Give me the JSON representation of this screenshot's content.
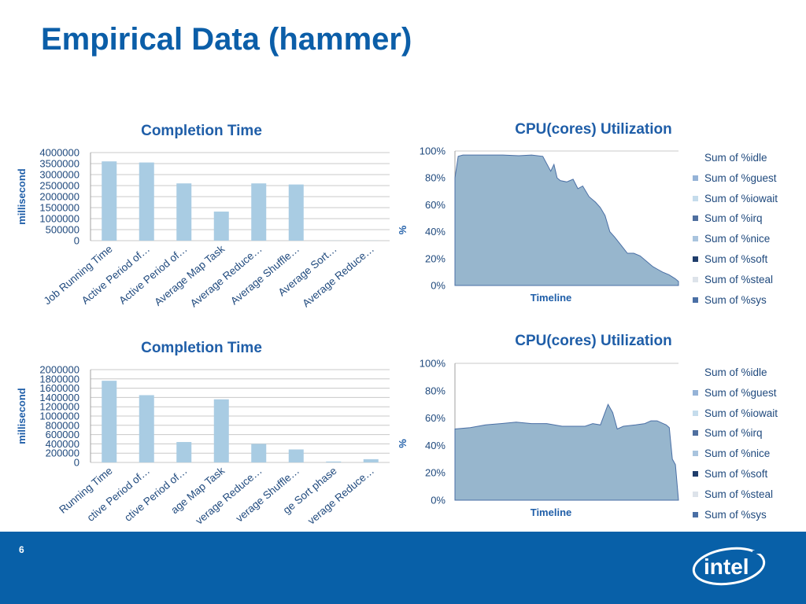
{
  "slide": {
    "title": "Empirical Data (hammer)",
    "page_number": "6"
  },
  "logo": {
    "text": "intel"
  },
  "chart_data": [
    {
      "type": "bar",
      "title": "Completion Time",
      "ylabel": "millisecond",
      "xlabel": "",
      "ylim": [
        0,
        4000000
      ],
      "yticks": [
        "4000000",
        "3500000",
        "3000000",
        "2500000",
        "2000000",
        "1500000",
        "1000000",
        "500000",
        "0"
      ],
      "categories": [
        "Job Running Time",
        "Active Period of…",
        "Active Period of…",
        "Average Map Task",
        "Average Reduce…",
        "Average Shuffle…",
        "Average Sort…",
        "Average Reduce…"
      ],
      "values": [
        3600000,
        3550000,
        2600000,
        1320000,
        2600000,
        2550000,
        5000,
        5000
      ],
      "bar_color": "#a9cce3",
      "grid": true
    },
    {
      "type": "bar",
      "title": "Completion Time",
      "ylabel": "millisecond",
      "xlabel": "",
      "ylim": [
        0,
        2000000
      ],
      "yticks": [
        "2000000",
        "1800000",
        "1600000",
        "1400000",
        "1200000",
        "1000000",
        "800000",
        "600000",
        "400000",
        "200000",
        "0"
      ],
      "categories": [
        "Running Time",
        "ctive Period of…",
        "ctive Period of…",
        "age Map Task",
        "verage Reduce…",
        "verage Shuffle…",
        "ge Sort phase",
        "verage Reduce…"
      ],
      "values": [
        1760000,
        1450000,
        440000,
        1360000,
        400000,
        280000,
        20000,
        70000
      ],
      "bar_color": "#a9cce3",
      "grid": true
    },
    {
      "type": "area",
      "title": "CPU(cores) Utilization",
      "xlabel": "Timeline",
      "ylabel": "%",
      "ylim": [
        0,
        100
      ],
      "yticks": [
        "100%",
        "80%",
        "60%",
        "40%",
        "20%",
        "0%"
      ],
      "legend_position": "right",
      "legend": [
        "Sum of %idle",
        "Sum of %guest",
        "Sum of %iowait",
        "Sum of %irq",
        "Sum of %nice",
        "Sum of %soft",
        "Sum of %steal",
        "Sum of %sys"
      ],
      "legend_colors": [
        "#ffffff",
        "#95b3d7",
        "#c5dcec",
        "#4f6f9f",
        "#a9c4de",
        "#1f3d6b",
        "#dde3ea",
        "#4a6fa5"
      ],
      "fill_color": "#97b6cd",
      "sys_color": "#4a6fa5",
      "series_busy_pct": [
        [
          0,
          80
        ],
        [
          2,
          96
        ],
        [
          5,
          97
        ],
        [
          10,
          97
        ],
        [
          20,
          97
        ],
        [
          30,
          97
        ],
        [
          40,
          96.5
        ],
        [
          48,
          97
        ],
        [
          55,
          96
        ],
        [
          60,
          85
        ],
        [
          62,
          90
        ],
        [
          64,
          80
        ],
        [
          66,
          78
        ],
        [
          70,
          77
        ],
        [
          74,
          79
        ],
        [
          77,
          72
        ],
        [
          80,
          74
        ],
        [
          84,
          66
        ],
        [
          88,
          62
        ],
        [
          91,
          58
        ],
        [
          94,
          52
        ],
        [
          97,
          40
        ],
        [
          100,
          36
        ],
        [
          104,
          30
        ],
        [
          108,
          24
        ],
        [
          112,
          24
        ],
        [
          116,
          22
        ],
        [
          120,
          18
        ],
        [
          124,
          14
        ],
        [
          127,
          12
        ],
        [
          130,
          10
        ],
        [
          134,
          8
        ],
        [
          138,
          5
        ],
        [
          140,
          3
        ]
      ]
    },
    {
      "type": "area",
      "title": "CPU(cores) Utilization",
      "xlabel": "Timeline",
      "ylabel": "%",
      "ylim": [
        0,
        100
      ],
      "yticks": [
        "100%",
        "80%",
        "60%",
        "40%",
        "20%",
        "0%"
      ],
      "legend_position": "right",
      "legend": [
        "Sum of %idle",
        "Sum of %guest",
        "Sum of %iowait",
        "Sum of %irq",
        "Sum of %nice",
        "Sum of %soft",
        "Sum of %steal",
        "Sum of %sys"
      ],
      "legend_colors": [
        "#ffffff",
        "#95b3d7",
        "#c5dcec",
        "#4f6f9f",
        "#a9c4de",
        "#1f3d6b",
        "#dde3ea",
        "#4a6fa5"
      ],
      "fill_color": "#97b6cd",
      "sys_color": "#4a6fa5",
      "series_busy_pct": [
        [
          0,
          52
        ],
        [
          10,
          53
        ],
        [
          20,
          55
        ],
        [
          30,
          56
        ],
        [
          40,
          57
        ],
        [
          50,
          56
        ],
        [
          60,
          56
        ],
        [
          70,
          54
        ],
        [
          80,
          54
        ],
        [
          85,
          54
        ],
        [
          90,
          56
        ],
        [
          95,
          55
        ],
        [
          100,
          70
        ],
        [
          103,
          64
        ],
        [
          106,
          52
        ],
        [
          110,
          54
        ],
        [
          118,
          55
        ],
        [
          124,
          56
        ],
        [
          128,
          58
        ],
        [
          132,
          58
        ],
        [
          136,
          56
        ],
        [
          138,
          55
        ],
        [
          140,
          53
        ],
        [
          142,
          30
        ],
        [
          144,
          26
        ],
        [
          146,
          0
        ]
      ]
    }
  ]
}
